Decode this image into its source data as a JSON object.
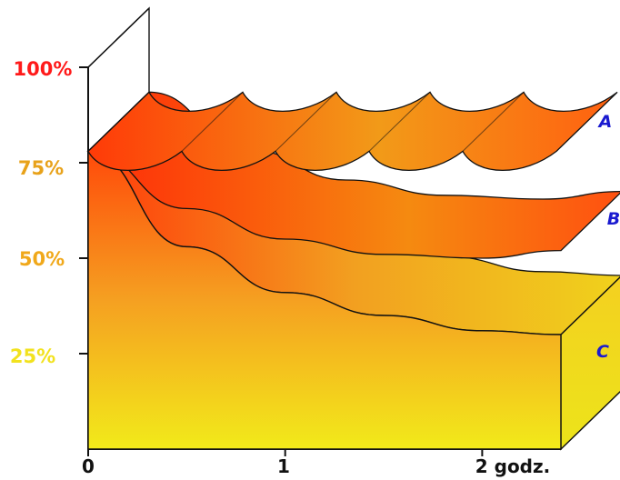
{
  "chart_data": {
    "type": "area",
    "title": "",
    "xlabel": "",
    "ylabel": "",
    "x_ticks": [
      "0",
      "1",
      "2 godz."
    ],
    "y_ticks": [
      "25%",
      "50%",
      "75%",
      "100%"
    ],
    "y_tick_colors": [
      "#f2e21e",
      "#f0a81a",
      "#e8a21a",
      "#ff1a1a"
    ],
    "xlim": [
      0,
      2.4
    ],
    "ylim": [
      0,
      100
    ],
    "series": [
      {
        "name": "A",
        "x": [
          0,
          0.5,
          1,
          1.5,
          2,
          2.4
        ],
        "values": [
          78,
          78,
          78,
          78,
          78,
          78
        ]
      },
      {
        "name": "B",
        "x": [
          0,
          0.5,
          1,
          1.5,
          2,
          2.4
        ],
        "values": [
          78,
          63,
          55,
          51,
          50,
          52
        ]
      },
      {
        "name": "C",
        "x": [
          0,
          0.5,
          1,
          1.5,
          2,
          2.4
        ],
        "values": [
          78,
          53,
          41,
          35,
          31,
          30
        ]
      }
    ],
    "series_label_color": "#1a1ad0",
    "grid": false,
    "legend": "none"
  }
}
